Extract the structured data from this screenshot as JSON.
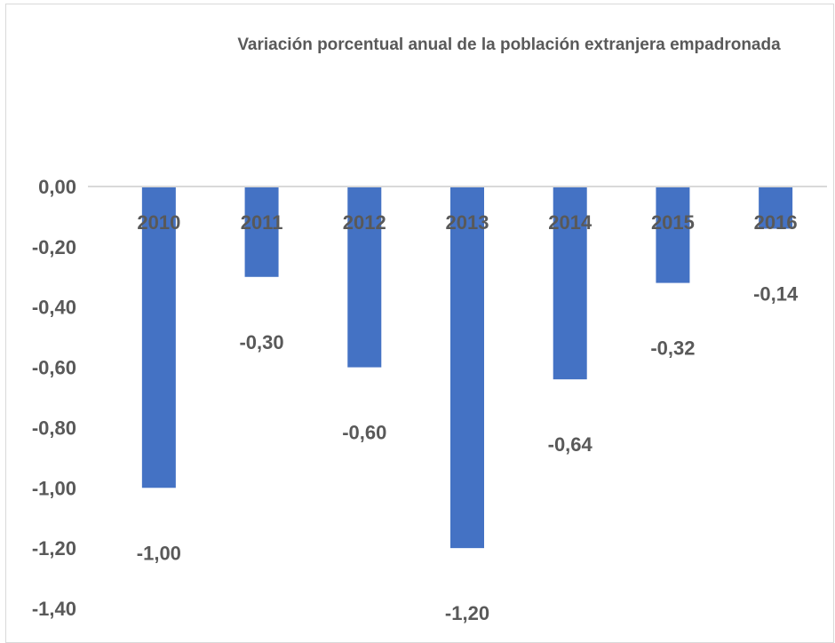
{
  "chart_data": {
    "type": "bar",
    "title": "Variación porcentual anual de la población extranjera empadronada",
    "xlabel": "",
    "ylabel": "",
    "categories": [
      "2010",
      "2011",
      "2012",
      "2013",
      "2014",
      "2015",
      "2016"
    ],
    "values": [
      -1.0,
      -0.3,
      -0.6,
      -1.2,
      -0.64,
      -0.32,
      -0.14
    ],
    "data_labels": [
      "-1,00",
      "-0,30",
      "-0,60",
      "-1,20",
      "-0,64",
      "-0,32",
      "-0,14"
    ],
    "ylim": [
      -1.4,
      0.0
    ],
    "yticks": [
      0.0,
      -0.2,
      -0.4,
      -0.6,
      -0.8,
      -1.0,
      -1.2,
      -1.4
    ],
    "ytick_labels": [
      "0,00",
      "-0,20",
      "-0,40",
      "-0,60",
      "-0,80",
      "-1,00",
      "-1,20",
      "-1,40"
    ],
    "grid": false,
    "legend": "none",
    "colors": {
      "bar": "#4472c4",
      "axis": "#d9d9d9",
      "text": "#595959"
    }
  }
}
